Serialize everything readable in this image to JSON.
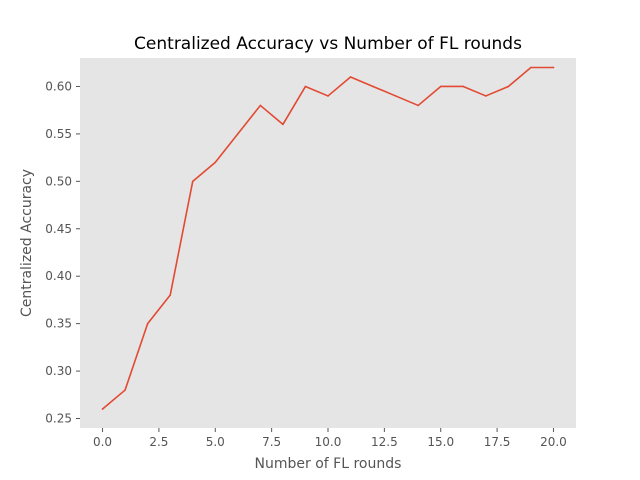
{
  "chart_data": {
    "type": "line",
    "title": "Centralized Accuracy vs Number of FL rounds",
    "xlabel": "Number of FL rounds",
    "ylabel": "Centralized Accuracy",
    "xlim": [
      -1,
      21
    ],
    "ylim": [
      0.24,
      0.63
    ],
    "grid": false,
    "xticks": [
      0.0,
      2.5,
      5.0,
      7.5,
      10.0,
      12.5,
      15.0,
      17.5,
      20.0
    ],
    "xtick_labels": [
      "0.0",
      "2.5",
      "5.0",
      "7.5",
      "10.0",
      "12.5",
      "15.0",
      "17.5",
      "20.0"
    ],
    "yticks": [
      0.25,
      0.3,
      0.35,
      0.4,
      0.45,
      0.5,
      0.55,
      0.6
    ],
    "ytick_labels": [
      "0.25",
      "0.30",
      "0.35",
      "0.40",
      "0.45",
      "0.50",
      "0.55",
      "0.60"
    ],
    "series": [
      {
        "color": "#e24a33",
        "x": [
          0,
          1,
          2,
          3,
          4,
          5,
          6,
          7,
          8,
          9,
          10,
          11,
          12,
          13,
          14,
          15,
          16,
          17,
          18,
          19,
          20
        ],
        "y": [
          0.26,
          0.28,
          0.35,
          0.38,
          0.5,
          0.52,
          0.55,
          0.58,
          0.56,
          0.6,
          0.59,
          0.61,
          0.6,
          0.59,
          0.58,
          0.6,
          0.6,
          0.59,
          0.6,
          0.62,
          0.62
        ]
      }
    ]
  }
}
